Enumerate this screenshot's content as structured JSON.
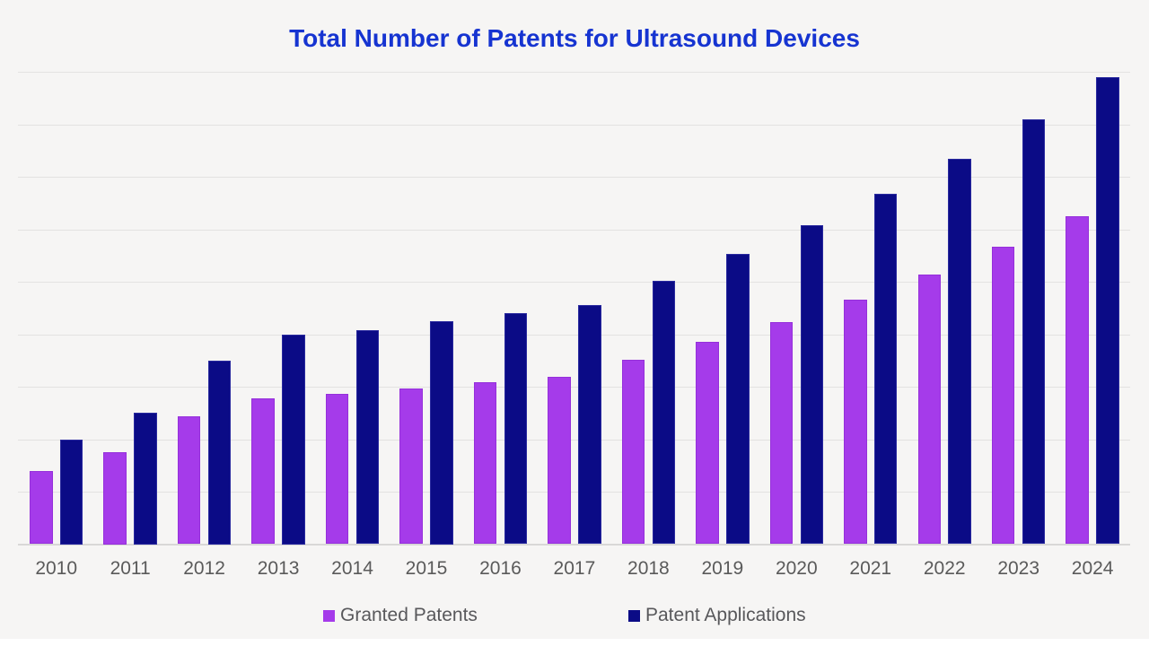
{
  "title": "Total Number of Patents for Ultrasound Devices",
  "colors": {
    "title": "#1634D1",
    "background": "#F6F5F4",
    "gridline": "#E3E2E1",
    "axis_line": "#D9D8D7",
    "granted_patents": "#A53BEA",
    "patent_applications": "#0B0B86",
    "label_text": "#5A5A5A",
    "legend_text": "#58585B"
  },
  "legend": {
    "position": "bottom",
    "items": [
      {
        "label": "Granted Patents",
        "color": "#A53BEA"
      },
      {
        "label": "Patent Applications",
        "color": "#0B0B86"
      }
    ]
  },
  "chart_data": {
    "type": "bar",
    "title": "Total Number of Patents for Ultrasound Devices",
    "categories": [
      "2010",
      "2011",
      "2012",
      "2013",
      "2014",
      "2015",
      "2016",
      "2017",
      "2018",
      "2019",
      "2020",
      "2021",
      "2022",
      "2023",
      "2024"
    ],
    "series": [
      {
        "name": "Granted Patents",
        "color": "#A53BEA",
        "values": [
          140,
          175,
          244,
          278,
          287,
          297,
          309,
          318,
          351,
          385,
          423,
          466,
          514,
          566,
          624
        ]
      },
      {
        "name": "Patent Applications",
        "color": "#0B0B86",
        "values": [
          200,
          250,
          350,
          400,
          408,
          425,
          440,
          456,
          502,
          553,
          607,
          668,
          735,
          809,
          890
        ]
      }
    ],
    "xlabel": "",
    "ylabel": "",
    "ylim": [
      0,
      900
    ],
    "gridline_interval": 100,
    "grid": true,
    "y_tick_labels_visible": false,
    "legend_position": "bottom"
  }
}
